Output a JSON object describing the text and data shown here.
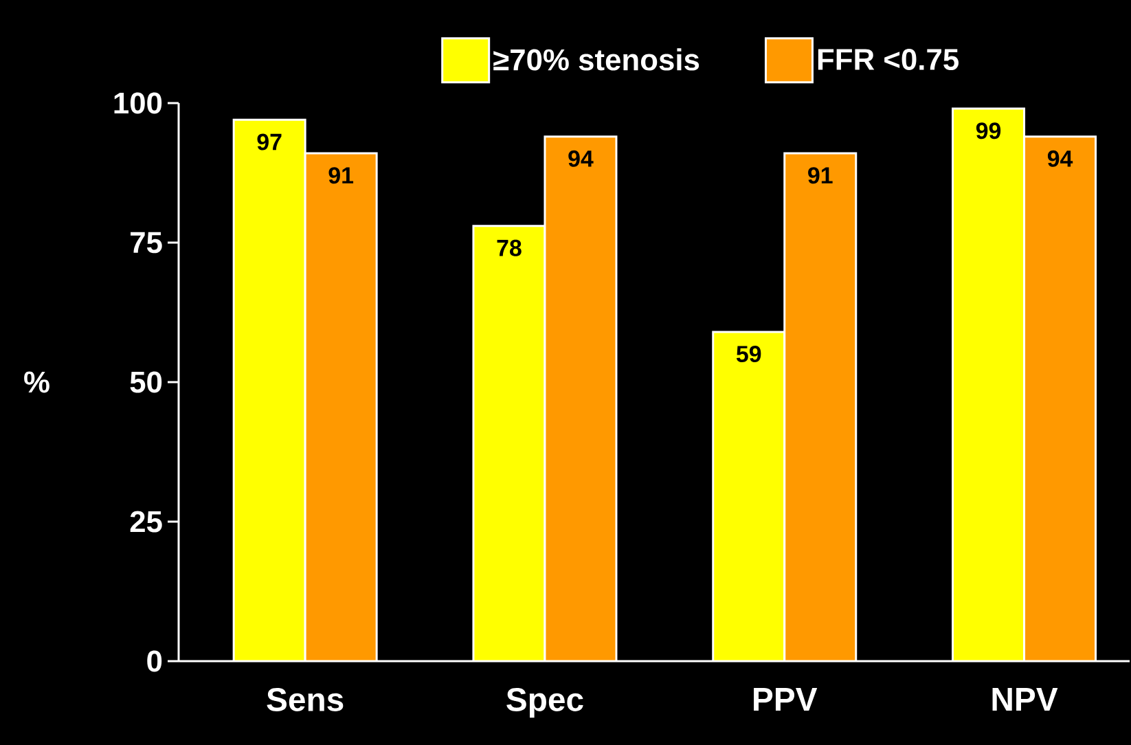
{
  "chart_data": {
    "type": "bar",
    "categories": [
      "Sens",
      "Spec",
      "PPV",
      "NPV"
    ],
    "ylabel": "%",
    "series": [
      {
        "name": "≥70% stenosis",
        "color": "#ffff00",
        "values": [
          97,
          78,
          59,
          99
        ]
      },
      {
        "name": "FFR <0.75",
        "color": "#ff9900",
        "values": [
          91,
          94,
          91,
          94
        ]
      }
    ],
    "ylim": [
      0,
      100
    ],
    "yticks": [
      0,
      25,
      50,
      75,
      100
    ],
    "data_labels": true,
    "legend": "top"
  }
}
